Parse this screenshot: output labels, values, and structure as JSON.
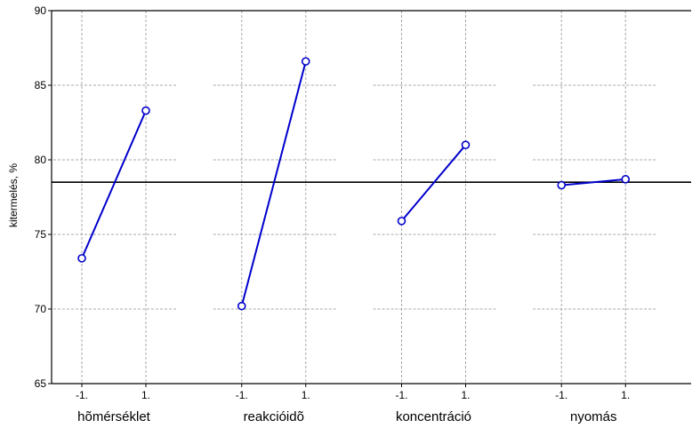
{
  "chart_data": {
    "type": "line",
    "ylabel": "kitermelés, %",
    "ylim": [
      65,
      90
    ],
    "yticks": [
      "65",
      "70",
      "75",
      "80",
      "85",
      "90"
    ],
    "xticks": [
      "-1.",
      "1."
    ],
    "grid": true,
    "reference_line": 78.5,
    "series_color": "#0000cc",
    "panels": [
      {
        "factor": "hõmérséklet",
        "x": [
          "-1.",
          "1."
        ],
        "values": [
          73.4,
          83.3
        ]
      },
      {
        "factor": "reakcióidõ",
        "x": [
          "-1.",
          "1."
        ],
        "values": [
          70.2,
          86.6
        ]
      },
      {
        "factor": "koncentráció",
        "x": [
          "-1.",
          "1."
        ],
        "values": [
          75.9,
          81.0
        ]
      },
      {
        "factor": "nyomás",
        "x": [
          "-1.",
          "1."
        ],
        "values": [
          78.3,
          78.7
        ]
      }
    ]
  }
}
